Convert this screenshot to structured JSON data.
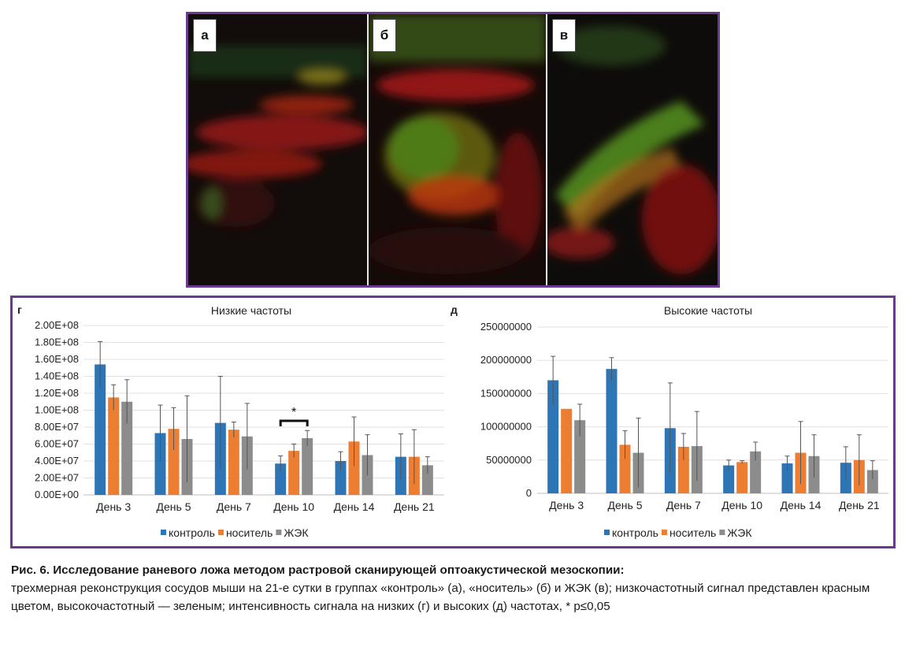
{
  "panels": [
    {
      "label": "а"
    },
    {
      "label": "б"
    },
    {
      "label": "в"
    }
  ],
  "chart_data": [
    {
      "type": "bar",
      "panel_label": "г",
      "title": "Низкие частоты",
      "categories": [
        "День 3",
        "День 5",
        "День 7",
        "День 10",
        "День 14",
        "День 21"
      ],
      "series": [
        {
          "name": "контроль",
          "color": "#2e75b6",
          "values": [
            154000000,
            73000000,
            85000000,
            37000000,
            40000000,
            45000000
          ],
          "errors": [
            27000000,
            33000000,
            55000000,
            9000000,
            11000000,
            27000000
          ]
        },
        {
          "name": "носитель",
          "color": "#ed7d31",
          "values": [
            115000000,
            78000000,
            77000000,
            52000000,
            63000000,
            45000000
          ],
          "errors": [
            15000000,
            25000000,
            9000000,
            8000000,
            29000000,
            32000000
          ]
        },
        {
          "name": "ЖЭК",
          "color": "#8c8c8c",
          "values": [
            110000000,
            66000000,
            69000000,
            67000000,
            47000000,
            35000000
          ],
          "errors": [
            26000000,
            51000000,
            39000000,
            9000000,
            24000000,
            10000000
          ]
        }
      ],
      "ylim": [
        0,
        200000000
      ],
      "ytick_labels": [
        "0.00E+00",
        "2.00E+07",
        "4.00E+07",
        "6.00E+07",
        "8.00E+07",
        "1.00E+08",
        "1.20E+08",
        "1.40E+08",
        "1.60E+08",
        "1.80E+08",
        "2.00E+08"
      ],
      "annotation": {
        "text": "*",
        "category": "День 10"
      },
      "grid": true,
      "legend": "bottom"
    },
    {
      "type": "bar",
      "panel_label": "д",
      "title": "Высокие частоты",
      "categories": [
        "День 3",
        "День 5",
        "День 7",
        "День 10",
        "День 14",
        "День 21"
      ],
      "series": [
        {
          "name": "контроль",
          "color": "#2e75b6",
          "values": [
            170000000,
            187000000,
            98000000,
            42000000,
            45000000,
            46000000
          ],
          "errors": [
            36000000,
            17000000,
            68000000,
            8000000,
            11000000,
            24000000
          ]
        },
        {
          "name": "носитель",
          "color": "#ed7d31",
          "values": [
            127000000,
            73000000,
            70000000,
            47000000,
            61000000,
            50000000
          ],
          "errors": [
            0,
            21000000,
            20000000,
            2000000,
            47000000,
            38000000
          ]
        },
        {
          "name": "ЖЭК",
          "color": "#8c8c8c",
          "values": [
            110000000,
            61000000,
            71000000,
            63000000,
            56000000,
            35000000
          ],
          "errors": [
            24000000,
            52000000,
            52000000,
            14000000,
            32000000,
            14000000
          ]
        }
      ],
      "ylim": [
        0,
        250000000
      ],
      "ytick_labels": [
        "0",
        "50000000",
        "100000000",
        "150000000",
        "200000000",
        "250000000"
      ],
      "grid": true,
      "legend": "bottom"
    }
  ],
  "caption": {
    "title": "Рис. 6. Исследование раневого ложа методом растровой сканирующей оптоакустической мезоскопии:",
    "body": "трехмерная реконструкция сосудов мыши на 21-е сутки в группах «контроль» (а), «носитель» (б) и ЖЭК (в); низкочастотный сигнал представлен красным цветом, высокочастотный — зеленым; интенсивность сигнала на низких (г) и высоких (д) частотах, * p≤0,05"
  }
}
